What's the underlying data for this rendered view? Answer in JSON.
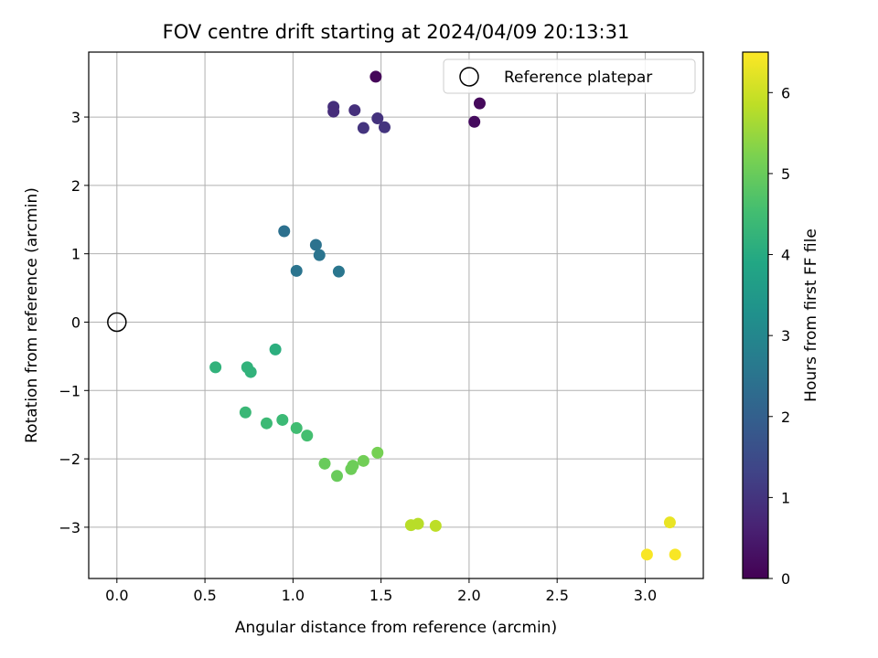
{
  "chart_data": {
    "type": "scatter",
    "title": "FOV centre drift starting at 2024/04/09 20:13:31",
    "xlabel": "Angular distance from reference (arcmin)",
    "ylabel": "Rotation from reference (arcmin)",
    "xlim": [
      -0.16,
      3.33
    ],
    "ylim": [
      -3.75,
      3.95
    ],
    "xticks": [
      0.0,
      0.5,
      1.0,
      1.5,
      2.0,
      2.5,
      3.0
    ],
    "xtick_labels": [
      "0.0",
      "0.5",
      "1.0",
      "1.5",
      "2.0",
      "2.5",
      "3.0"
    ],
    "yticks": [
      -3,
      -2,
      -1,
      0,
      1,
      2,
      3
    ],
    "ytick_labels": [
      "−3",
      "−2",
      "−1",
      "0",
      "1",
      "2",
      "3"
    ],
    "grid": true,
    "legend": {
      "placement": "top-right",
      "entries": [
        "Reference platepar"
      ]
    },
    "reference_point": {
      "x": 0.0,
      "y": 0.0,
      "marker": "open-circle",
      "label": "Reference platepar"
    },
    "colorbar": {
      "label": "Hours from first FF file",
      "colormap": "viridis",
      "range": [
        0,
        6.5
      ],
      "ticks": [
        0,
        1,
        2,
        3,
        4,
        5,
        6
      ],
      "tick_labels": [
        "0",
        "1",
        "2",
        "3",
        "4",
        "5",
        "6"
      ]
    },
    "series": [
      {
        "points": [
          {
            "x": 1.47,
            "y": 3.59,
            "hours": 0.1
          },
          {
            "x": 2.06,
            "y": 3.2,
            "hours": 0.15
          },
          {
            "x": 2.03,
            "y": 2.93,
            "hours": 0.2
          },
          {
            "x": 1.23,
            "y": 3.15,
            "hours": 0.9
          },
          {
            "x": 1.23,
            "y": 3.08,
            "hours": 0.85
          },
          {
            "x": 1.35,
            "y": 3.1,
            "hours": 0.9
          },
          {
            "x": 1.48,
            "y": 2.98,
            "hours": 0.95
          },
          {
            "x": 1.4,
            "y": 2.84,
            "hours": 1.0
          },
          {
            "x": 1.52,
            "y": 2.85,
            "hours": 1.0
          },
          {
            "x": 0.95,
            "y": 1.33,
            "hours": 2.4
          },
          {
            "x": 1.13,
            "y": 1.13,
            "hours": 2.45
          },
          {
            "x": 1.15,
            "y": 0.98,
            "hours": 2.5
          },
          {
            "x": 1.02,
            "y": 0.75,
            "hours": 2.5
          },
          {
            "x": 1.26,
            "y": 0.74,
            "hours": 2.55
          },
          {
            "x": 0.9,
            "y": -0.4,
            "hours": 4.1
          },
          {
            "x": 0.56,
            "y": -0.66,
            "hours": 4.2
          },
          {
            "x": 0.74,
            "y": -0.66,
            "hours": 4.2
          },
          {
            "x": 0.76,
            "y": -0.73,
            "hours": 4.2
          },
          {
            "x": 0.73,
            "y": -1.32,
            "hours": 4.35
          },
          {
            "x": 0.85,
            "y": -1.48,
            "hours": 4.4
          },
          {
            "x": 0.94,
            "y": -1.43,
            "hours": 4.4
          },
          {
            "x": 1.02,
            "y": -1.55,
            "hours": 4.5
          },
          {
            "x": 1.08,
            "y": -1.66,
            "hours": 4.55
          },
          {
            "x": 1.18,
            "y": -2.07,
            "hours": 5.0
          },
          {
            "x": 1.25,
            "y": -2.25,
            "hours": 5.0
          },
          {
            "x": 1.33,
            "y": -2.15,
            "hours": 5.05
          },
          {
            "x": 1.34,
            "y": -2.1,
            "hours": 5.05
          },
          {
            "x": 1.4,
            "y": -2.03,
            "hours": 5.1
          },
          {
            "x": 1.48,
            "y": -1.91,
            "hours": 5.15
          },
          {
            "x": 1.67,
            "y": -2.97,
            "hours": 5.8
          },
          {
            "x": 1.71,
            "y": -2.95,
            "hours": 5.8
          },
          {
            "x": 1.81,
            "y": -2.98,
            "hours": 5.85
          },
          {
            "x": 3.01,
            "y": -3.4,
            "hours": 6.45
          },
          {
            "x": 3.14,
            "y": -2.93,
            "hours": 6.3
          },
          {
            "x": 3.17,
            "y": -3.4,
            "hours": 6.45
          }
        ]
      }
    ]
  }
}
